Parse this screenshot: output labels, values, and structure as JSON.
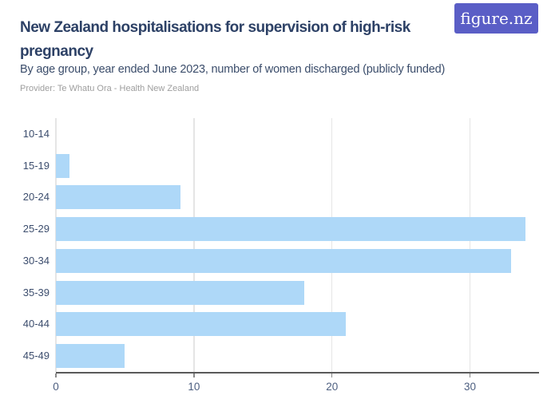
{
  "logo": {
    "text": "figure.nz",
    "background": "#5a5ec6"
  },
  "header": {
    "title": "New Zealand hospitalisations for supervision of high-risk pregnancy",
    "subtitle": "By age group, year ended June 2023, number of women discharged (publicly funded)",
    "provider": "Provider: Te Whatu Ora - Health New Zealand"
  },
  "chart_data": {
    "type": "bar",
    "orientation": "horizontal",
    "title": "New Zealand hospitalisations for supervision of high-risk pregnancy",
    "subtitle": "By age group, year ended June 2023, number of women discharged (publicly funded)",
    "provider": "Provider: Te Whatu Ora - Health New Zealand",
    "categories": [
      "10-14",
      "15-19",
      "20-24",
      "25-29",
      "30-34",
      "35-39",
      "40-44",
      "45-49"
    ],
    "values": [
      0,
      1,
      9,
      34,
      33,
      18,
      21,
      5
    ],
    "xlabel": "",
    "ylabel": "",
    "xlim": [
      0,
      35
    ],
    "xticks": [
      0,
      10,
      20,
      30
    ],
    "grid": "vertical-only",
    "legend": "none",
    "bar_color": "#aed8f8",
    "gridline_color": "#e5e5e5",
    "axis_line_color": "#595959",
    "tick_label_color": "#4d5f80",
    "category_label_color": "#3d4e6e"
  }
}
